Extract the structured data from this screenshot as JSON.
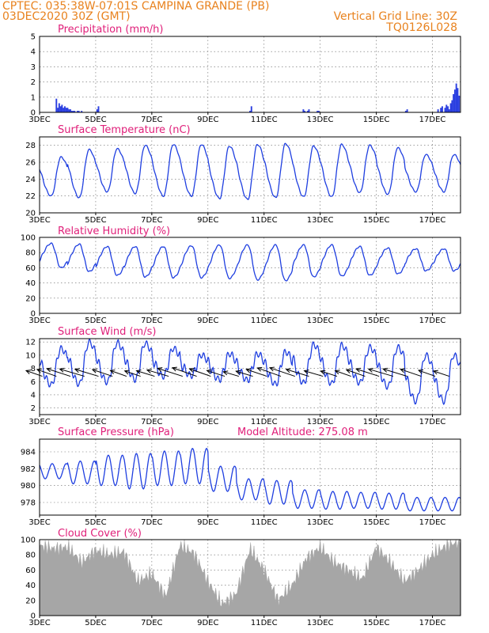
{
  "header": {
    "line1_left": "CPTEC:   035:38W-07:01S   CAMPINA GRANDE (PB)",
    "line2_left": "03DEC2020 30Z (GMT)",
    "line2_right": "Vertical Grid Line: 30Z",
    "line3_right": "TQ0126L028"
  },
  "colors": {
    "header": "#e8821e",
    "title": "#e0207a",
    "line": "#1f3fe0",
    "bar": "#2b3fe0",
    "cloud": "#a6a6a6",
    "wind_vec": "#000000"
  },
  "x_axis": {
    "tick_labels": [
      "3DEC",
      "5DEC",
      "7DEC",
      "9DEC",
      "11DEC",
      "13DEC",
      "15DEC",
      "17DEC"
    ],
    "tick_days": [
      3,
      5,
      7,
      9,
      11,
      13,
      15,
      17
    ],
    "range_days": [
      3,
      18
    ]
  },
  "chart_data": [
    {
      "id": "precip",
      "type": "bar",
      "title": "Precipitation (mm/h)",
      "ylim": [
        0,
        5
      ],
      "yticks": [
        0,
        1,
        2,
        3,
        4,
        5
      ],
      "x": [
        3.6,
        3.65,
        3.7,
        3.75,
        3.8,
        3.85,
        3.9,
        3.95,
        4.0,
        4.05,
        4.1,
        4.15,
        4.2,
        4.25,
        4.35,
        4.4,
        4.5,
        5.05,
        5.1,
        10.5,
        10.55,
        12.4,
        12.45,
        12.55,
        12.6,
        12.9,
        12.95,
        16.05,
        16.1,
        17.2,
        17.3,
        17.35,
        17.45,
        17.5,
        17.55,
        17.6,
        17.65,
        17.7,
        17.75,
        17.8,
        17.85,
        17.9,
        17.95
      ],
      "values": [
        0.9,
        0.3,
        0.6,
        0.4,
        0.5,
        0.3,
        0.4,
        0.3,
        0.3,
        0.2,
        0.2,
        0.1,
        0.1,
        0.1,
        0.1,
        0.1,
        0.1,
        0.2,
        0.4,
        0.1,
        0.4,
        0.2,
        0.1,
        0.1,
        0.2,
        0.1,
        0.1,
        0.1,
        0.2,
        0.2,
        0.3,
        0.4,
        0.3,
        0.5,
        0.4,
        0.2,
        0.6,
        0.8,
        1.2,
        1.5,
        1.9,
        1.6,
        1.1
      ]
    },
    {
      "id": "temp",
      "type": "line",
      "title": "Surface Temperature (nC)",
      "ylim": [
        20,
        29
      ],
      "yticks": [
        20,
        22,
        24,
        26,
        28
      ],
      "min_values": [
        22.0,
        21.8,
        22.5,
        22.3,
        22.0,
        22.0,
        21.7,
        21.6,
        21.8,
        21.9,
        21.9,
        22.4,
        22.2,
        22.5
      ],
      "max_values": [
        26.6,
        27.5,
        27.6,
        28.0,
        28.1,
        28.1,
        27.9,
        28.1,
        28.2,
        27.9,
        28.1,
        28.0,
        27.7,
        26.9
      ]
    },
    {
      "id": "rh",
      "type": "line",
      "title": "Relative Humidity (%)",
      "ylim": [
        0,
        100
      ],
      "yticks": [
        0,
        20,
        40,
        60,
        80,
        100
      ],
      "min_values": [
        60,
        55,
        50,
        48,
        47,
        47,
        46,
        44,
        43,
        48,
        49,
        50,
        52,
        56
      ],
      "max_values": [
        92,
        91,
        88,
        88,
        88,
        89,
        90,
        90,
        90,
        90,
        90,
        88,
        86,
        85
      ]
    },
    {
      "id": "wind",
      "type": "line",
      "title": "Surface Wind (m/s)",
      "ylim": [
        1,
        12.5
      ],
      "yticks": [
        2,
        4,
        6,
        8,
        10,
        12
      ],
      "min_values": [
        5.5,
        5.6,
        5.9,
        6.3,
        6.8,
        6.9,
        6.3,
        6.2,
        5.6,
        5.8,
        5.7,
        5.8,
        5.2,
        3.0
      ],
      "max_values": [
        11.0,
        12.0,
        11.9,
        11.8,
        11.0,
        10.0,
        10.2,
        10.2,
        10.5,
        11.6,
        11.5,
        11.2,
        11.2,
        10.0
      ],
      "vector_speed_mps": 6.8
    },
    {
      "id": "pres",
      "type": "line",
      "title": "Surface Pressure (hPa)",
      "annotation": "Model Altitude: 275.08 m",
      "ylim": [
        976.5,
        985.5
      ],
      "yticks": [
        978,
        980,
        982,
        984
      ],
      "max_values": [
        982.6,
        982.9,
        983.6,
        983.8,
        984.1,
        984.4,
        982.3,
        980.8,
        980.6,
        979.5,
        979.3,
        979.2,
        979.1,
        978.6
      ],
      "min_values": [
        980.8,
        980.2,
        980.0,
        979.6,
        980.0,
        980.2,
        979.3,
        978.3,
        977.8,
        977.3,
        977.2,
        977.3,
        977.2,
        977.0
      ]
    },
    {
      "id": "cloud",
      "type": "area",
      "title": "Cloud Cover (%)",
      "ylim": [
        0,
        100
      ],
      "yticks": [
        0,
        20,
        40,
        60,
        80,
        100
      ],
      "x": [
        3.0,
        3.5,
        4.0,
        4.5,
        5.0,
        5.5,
        6.0,
        6.5,
        7.0,
        7.5,
        8.0,
        8.5,
        9.0,
        9.5,
        10.0,
        10.5,
        11.0,
        11.5,
        12.0,
        12.5,
        13.0,
        13.5,
        14.0,
        14.5,
        15.0,
        15.5,
        16.0,
        16.5,
        17.0,
        17.5,
        18.0
      ],
      "values": [
        92,
        88,
        90,
        70,
        86,
        80,
        84,
        45,
        55,
        25,
        92,
        82,
        45,
        15,
        28,
        88,
        60,
        20,
        40,
        75,
        90,
        70,
        60,
        48,
        90,
        70,
        45,
        60,
        80,
        92,
        98
      ]
    }
  ]
}
